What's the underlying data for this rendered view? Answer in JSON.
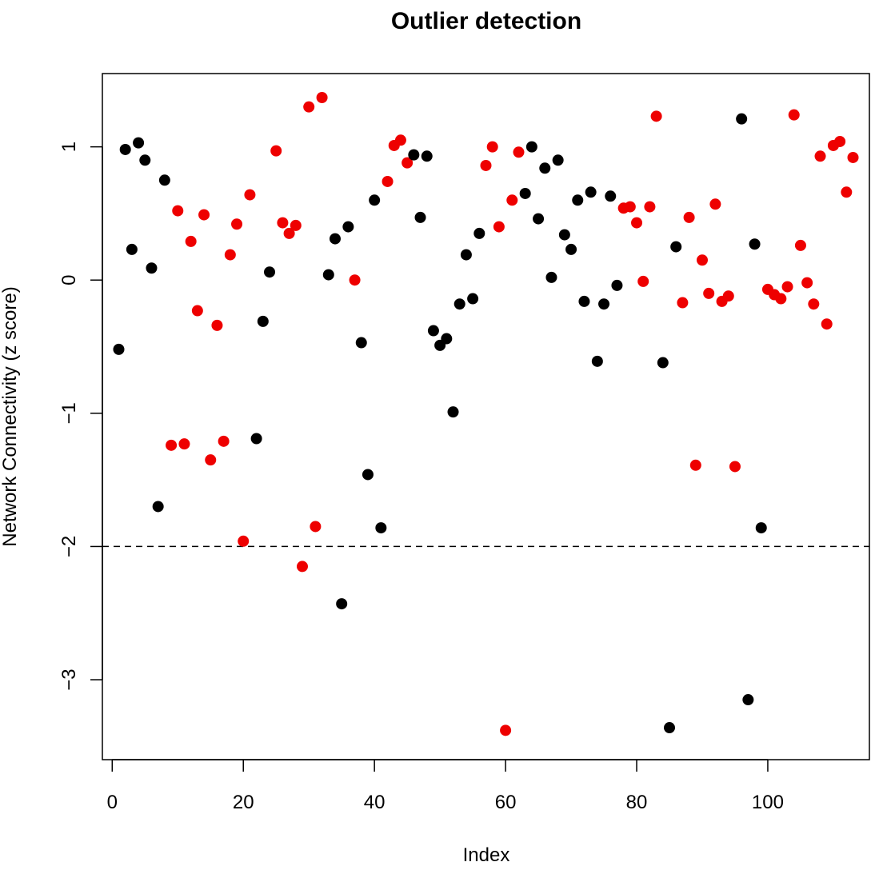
{
  "chart_data": {
    "type": "scatter",
    "title": "Outlier detection",
    "xlabel": "Index",
    "ylabel": "Network Connectivity (z score)",
    "xlim": [
      -1.5,
      115.5
    ],
    "ylim": [
      -3.6,
      1.55
    ],
    "x_ticks": [
      0,
      20,
      40,
      60,
      80,
      100
    ],
    "y_ticks": [
      -3,
      -2,
      -1,
      0,
      1
    ],
    "reference_line": {
      "y": -2,
      "style": "dashed"
    },
    "grid": false,
    "legend": "none",
    "colors": {
      "group_a": "#000000",
      "group_b": "#ee0000"
    },
    "points": [
      {
        "x": 1,
        "y": -0.52,
        "c": "group_a"
      },
      {
        "x": 2,
        "y": 0.98,
        "c": "group_a"
      },
      {
        "x": 3,
        "y": 0.23,
        "c": "group_a"
      },
      {
        "x": 4,
        "y": 1.03,
        "c": "group_a"
      },
      {
        "x": 5,
        "y": 0.9,
        "c": "group_a"
      },
      {
        "x": 6,
        "y": 0.09,
        "c": "group_a"
      },
      {
        "x": 7,
        "y": -1.7,
        "c": "group_a"
      },
      {
        "x": 8,
        "y": 0.75,
        "c": "group_a"
      },
      {
        "x": 9,
        "y": -1.24,
        "c": "group_b"
      },
      {
        "x": 10,
        "y": 0.52,
        "c": "group_b"
      },
      {
        "x": 11,
        "y": -1.23,
        "c": "group_b"
      },
      {
        "x": 12,
        "y": 0.29,
        "c": "group_b"
      },
      {
        "x": 13,
        "y": -0.23,
        "c": "group_b"
      },
      {
        "x": 14,
        "y": 0.49,
        "c": "group_b"
      },
      {
        "x": 15,
        "y": -1.35,
        "c": "group_b"
      },
      {
        "x": 16,
        "y": -0.34,
        "c": "group_b"
      },
      {
        "x": 17,
        "y": -1.21,
        "c": "group_b"
      },
      {
        "x": 18,
        "y": 0.19,
        "c": "group_b"
      },
      {
        "x": 19,
        "y": 0.42,
        "c": "group_b"
      },
      {
        "x": 20,
        "y": -1.96,
        "c": "group_b"
      },
      {
        "x": 21,
        "y": 0.64,
        "c": "group_b"
      },
      {
        "x": 22,
        "y": -1.19,
        "c": "group_a"
      },
      {
        "x": 23,
        "y": -0.31,
        "c": "group_a"
      },
      {
        "x": 24,
        "y": 0.06,
        "c": "group_a"
      },
      {
        "x": 25,
        "y": 0.97,
        "c": "group_b"
      },
      {
        "x": 26,
        "y": 0.43,
        "c": "group_b"
      },
      {
        "x": 27,
        "y": 0.35,
        "c": "group_b"
      },
      {
        "x": 28,
        "y": 0.41,
        "c": "group_b"
      },
      {
        "x": 29,
        "y": -2.15,
        "c": "group_b"
      },
      {
        "x": 30,
        "y": 1.3,
        "c": "group_b"
      },
      {
        "x": 31,
        "y": -1.85,
        "c": "group_b"
      },
      {
        "x": 32,
        "y": 1.37,
        "c": "group_b"
      },
      {
        "x": 33,
        "y": 0.04,
        "c": "group_a"
      },
      {
        "x": 34,
        "y": 0.31,
        "c": "group_a"
      },
      {
        "x": 35,
        "y": -2.43,
        "c": "group_a"
      },
      {
        "x": 36,
        "y": 0.4,
        "c": "group_a"
      },
      {
        "x": 37,
        "y": 0.0,
        "c": "group_b"
      },
      {
        "x": 38,
        "y": -0.47,
        "c": "group_a"
      },
      {
        "x": 39,
        "y": -1.46,
        "c": "group_a"
      },
      {
        "x": 40,
        "y": 0.6,
        "c": "group_a"
      },
      {
        "x": 41,
        "y": -1.86,
        "c": "group_a"
      },
      {
        "x": 42,
        "y": 0.74,
        "c": "group_b"
      },
      {
        "x": 43,
        "y": 1.01,
        "c": "group_b"
      },
      {
        "x": 44,
        "y": 1.05,
        "c": "group_b"
      },
      {
        "x": 45,
        "y": 0.88,
        "c": "group_b"
      },
      {
        "x": 46,
        "y": 0.94,
        "c": "group_a"
      },
      {
        "x": 47,
        "y": 0.47,
        "c": "group_a"
      },
      {
        "x": 48,
        "y": 0.93,
        "c": "group_a"
      },
      {
        "x": 49,
        "y": -0.38,
        "c": "group_a"
      },
      {
        "x": 50,
        "y": -0.49,
        "c": "group_a"
      },
      {
        "x": 51,
        "y": -0.44,
        "c": "group_a"
      },
      {
        "x": 52,
        "y": -0.99,
        "c": "group_a"
      },
      {
        "x": 53,
        "y": -0.18,
        "c": "group_a"
      },
      {
        "x": 54,
        "y": 0.19,
        "c": "group_a"
      },
      {
        "x": 55,
        "y": -0.14,
        "c": "group_a"
      },
      {
        "x": 56,
        "y": 0.35,
        "c": "group_a"
      },
      {
        "x": 57,
        "y": 0.86,
        "c": "group_b"
      },
      {
        "x": 58,
        "y": 1.0,
        "c": "group_b"
      },
      {
        "x": 59,
        "y": 0.4,
        "c": "group_b"
      },
      {
        "x": 60,
        "y": -3.38,
        "c": "group_b"
      },
      {
        "x": 61,
        "y": 0.6,
        "c": "group_b"
      },
      {
        "x": 62,
        "y": 0.96,
        "c": "group_b"
      },
      {
        "x": 63,
        "y": 0.65,
        "c": "group_a"
      },
      {
        "x": 64,
        "y": 1.0,
        "c": "group_a"
      },
      {
        "x": 65,
        "y": 0.46,
        "c": "group_a"
      },
      {
        "x": 66,
        "y": 0.84,
        "c": "group_a"
      },
      {
        "x": 67,
        "y": 0.02,
        "c": "group_a"
      },
      {
        "x": 68,
        "y": 0.9,
        "c": "group_a"
      },
      {
        "x": 69,
        "y": 0.34,
        "c": "group_a"
      },
      {
        "x": 70,
        "y": 0.23,
        "c": "group_a"
      },
      {
        "x": 71,
        "y": 0.6,
        "c": "group_a"
      },
      {
        "x": 72,
        "y": -0.16,
        "c": "group_a"
      },
      {
        "x": 73,
        "y": 0.66,
        "c": "group_a"
      },
      {
        "x": 74,
        "y": -0.61,
        "c": "group_a"
      },
      {
        "x": 75,
        "y": -0.18,
        "c": "group_a"
      },
      {
        "x": 76,
        "y": 0.63,
        "c": "group_a"
      },
      {
        "x": 77,
        "y": -0.04,
        "c": "group_a"
      },
      {
        "x": 78,
        "y": 0.54,
        "c": "group_b"
      },
      {
        "x": 79,
        "y": 0.55,
        "c": "group_b"
      },
      {
        "x": 80,
        "y": 0.43,
        "c": "group_b"
      },
      {
        "x": 81,
        "y": -0.01,
        "c": "group_b"
      },
      {
        "x": 82,
        "y": 0.55,
        "c": "group_b"
      },
      {
        "x": 83,
        "y": 1.23,
        "c": "group_b"
      },
      {
        "x": 84,
        "y": -0.62,
        "c": "group_a"
      },
      {
        "x": 85,
        "y": -3.36,
        "c": "group_a"
      },
      {
        "x": 86,
        "y": 0.25,
        "c": "group_a"
      },
      {
        "x": 87,
        "y": -0.17,
        "c": "group_b"
      },
      {
        "x": 88,
        "y": 0.47,
        "c": "group_b"
      },
      {
        "x": 89,
        "y": -1.39,
        "c": "group_b"
      },
      {
        "x": 90,
        "y": 0.15,
        "c": "group_b"
      },
      {
        "x": 91,
        "y": -0.1,
        "c": "group_b"
      },
      {
        "x": 92,
        "y": 0.57,
        "c": "group_b"
      },
      {
        "x": 93,
        "y": -0.16,
        "c": "group_b"
      },
      {
        "x": 94,
        "y": -0.12,
        "c": "group_b"
      },
      {
        "x": 95,
        "y": -1.4,
        "c": "group_b"
      },
      {
        "x": 96,
        "y": 1.21,
        "c": "group_a"
      },
      {
        "x": 97,
        "y": -3.15,
        "c": "group_a"
      },
      {
        "x": 98,
        "y": 0.27,
        "c": "group_a"
      },
      {
        "x": 99,
        "y": -1.86,
        "c": "group_a"
      },
      {
        "x": 100,
        "y": -0.07,
        "c": "group_b"
      },
      {
        "x": 101,
        "y": -0.11,
        "c": "group_b"
      },
      {
        "x": 102,
        "y": -0.14,
        "c": "group_b"
      },
      {
        "x": 103,
        "y": -0.05,
        "c": "group_b"
      },
      {
        "x": 104,
        "y": 1.24,
        "c": "group_b"
      },
      {
        "x": 105,
        "y": 0.26,
        "c": "group_b"
      },
      {
        "x": 106,
        "y": -0.02,
        "c": "group_b"
      },
      {
        "x": 107,
        "y": -0.18,
        "c": "group_b"
      },
      {
        "x": 108,
        "y": 0.93,
        "c": "group_b"
      },
      {
        "x": 109,
        "y": -0.33,
        "c": "group_b"
      },
      {
        "x": 110,
        "y": 1.01,
        "c": "group_b"
      },
      {
        "x": 111,
        "y": 1.04,
        "c": "group_b"
      },
      {
        "x": 112,
        "y": 0.66,
        "c": "group_b"
      },
      {
        "x": 113,
        "y": 0.92,
        "c": "group_b"
      }
    ]
  }
}
